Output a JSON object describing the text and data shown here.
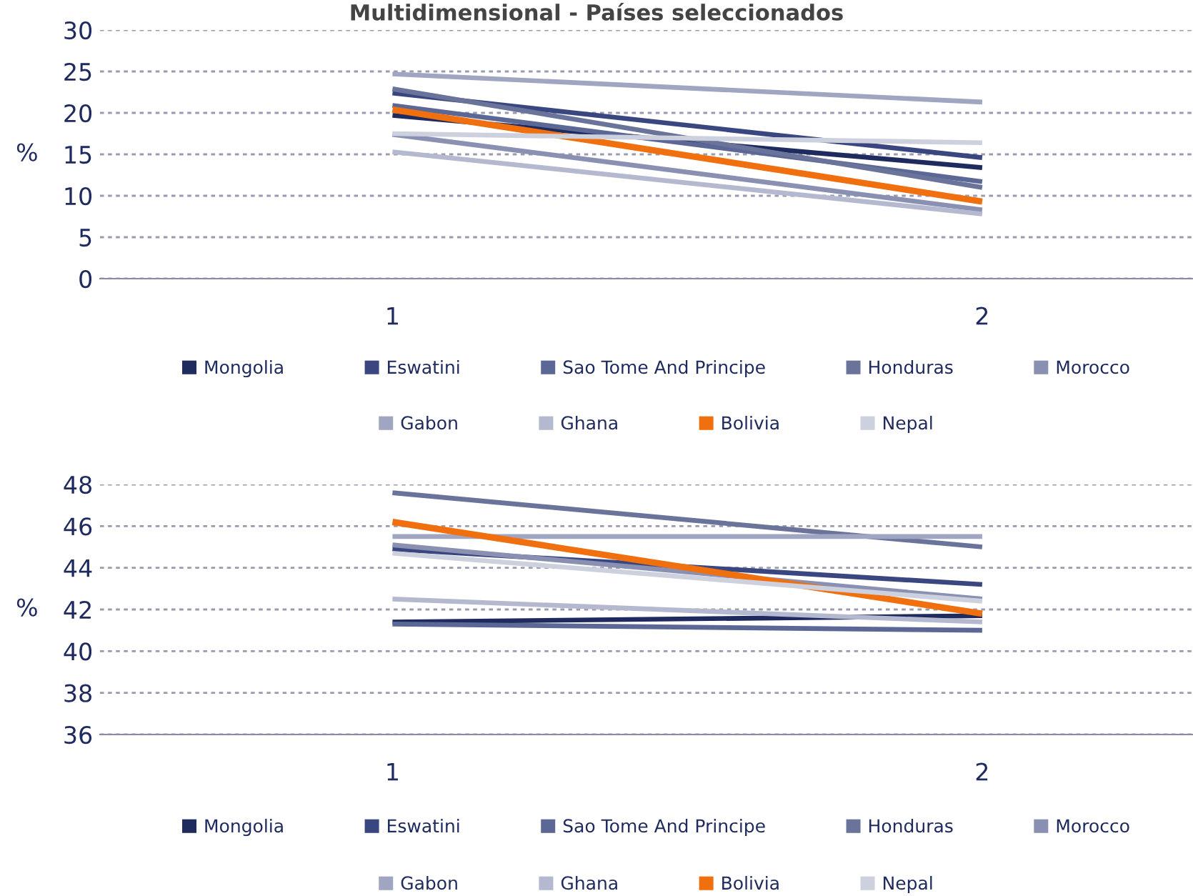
{
  "chart_data": [
    {
      "type": "line",
      "title": "Multidimensional - Países seleccionados",
      "ylabel": "%",
      "categories": [
        "1",
        "2"
      ],
      "ylim": [
        0,
        30
      ],
      "yticks": [
        0,
        5,
        10,
        15,
        20,
        25,
        30
      ],
      "grid": "y",
      "legend": "bottom",
      "series": [
        {
          "name": "Mongolia",
          "color": "#1f2a5e",
          "values": [
            19.7,
            13.4
          ]
        },
        {
          "name": "Eswatini",
          "color": "#3a4680",
          "values": [
            22.4,
            14.6
          ]
        },
        {
          "name": "Sao Tome And Principe",
          "color": "#5b6795",
          "values": [
            20.9,
            11.7
          ]
        },
        {
          "name": "Honduras",
          "color": "#6a7399",
          "values": [
            22.9,
            11.0
          ]
        },
        {
          "name": "Morocco",
          "color": "#8a90b2",
          "values": [
            17.4,
            8.3
          ]
        },
        {
          "name": "Gabon",
          "color": "#a0a5c2",
          "values": [
            24.7,
            21.3
          ]
        },
        {
          "name": "Ghana",
          "color": "#b5b9d0",
          "values": [
            15.3,
            7.8
          ]
        },
        {
          "name": "Bolivia",
          "color": "#f07010",
          "values": [
            20.4,
            9.3
          ]
        },
        {
          "name": "Nepal",
          "color": "#cdd1de",
          "values": [
            17.5,
            16.4
          ]
        }
      ]
    },
    {
      "type": "line",
      "ylabel": "%",
      "categories": [
        "1",
        "2"
      ],
      "ylim": [
        36,
        48
      ],
      "yticks": [
        36,
        38,
        40,
        42,
        44,
        46,
        48
      ],
      "grid": "y",
      "legend": "bottom",
      "series": [
        {
          "name": "Mongolia",
          "color": "#1f2a5e",
          "values": [
            41.4,
            41.7
          ]
        },
        {
          "name": "Eswatini",
          "color": "#3a4680",
          "values": [
            44.9,
            43.2
          ]
        },
        {
          "name": "Sao Tome And Principe",
          "color": "#5b6795",
          "values": [
            41.3,
            41.0
          ]
        },
        {
          "name": "Honduras",
          "color": "#6a7399",
          "values": [
            47.6,
            45.0
          ]
        },
        {
          "name": "Morocco",
          "color": "#8a90b2",
          "values": [
            45.1,
            42.5
          ]
        },
        {
          "name": "Gabon",
          "color": "#a0a5c2",
          "values": [
            45.5,
            45.5
          ]
        },
        {
          "name": "Ghana",
          "color": "#b5b9d0",
          "values": [
            42.5,
            41.4
          ]
        },
        {
          "name": "Bolivia",
          "color": "#f07010",
          "values": [
            46.2,
            41.8
          ]
        },
        {
          "name": "Nepal",
          "color": "#cdd1de",
          "values": [
            44.7,
            42.4
          ]
        }
      ]
    }
  ]
}
